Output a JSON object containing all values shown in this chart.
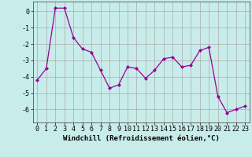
{
  "x": [
    0,
    1,
    2,
    3,
    4,
    5,
    6,
    7,
    8,
    9,
    10,
    11,
    12,
    13,
    14,
    15,
    16,
    17,
    18,
    19,
    20,
    21,
    22,
    23
  ],
  "y": [
    -4.2,
    -3.5,
    0.2,
    0.2,
    -1.6,
    -2.3,
    -2.5,
    -3.6,
    -4.7,
    -4.5,
    -3.4,
    -3.5,
    -4.1,
    -3.6,
    -2.9,
    -2.8,
    -3.4,
    -3.3,
    -2.4,
    -2.2,
    -5.2,
    -6.2,
    -6.0,
    -5.8
  ],
  "line_color": "#990099",
  "marker": "D",
  "marker_size": 2.0,
  "bg_color": "#c8ecea",
  "grid_color": "#aaaaaa",
  "xlabel": "Windchill (Refroidissement éolien,°C)",
  "xlabel_fontsize": 6.5,
  "tick_fontsize": 6.0,
  "ylabel_ticks": [
    0,
    -1,
    -2,
    -3,
    -4,
    -5,
    -6
  ],
  "ylim": [
    -6.8,
    0.6
  ],
  "xlim": [
    -0.5,
    23.5
  ]
}
